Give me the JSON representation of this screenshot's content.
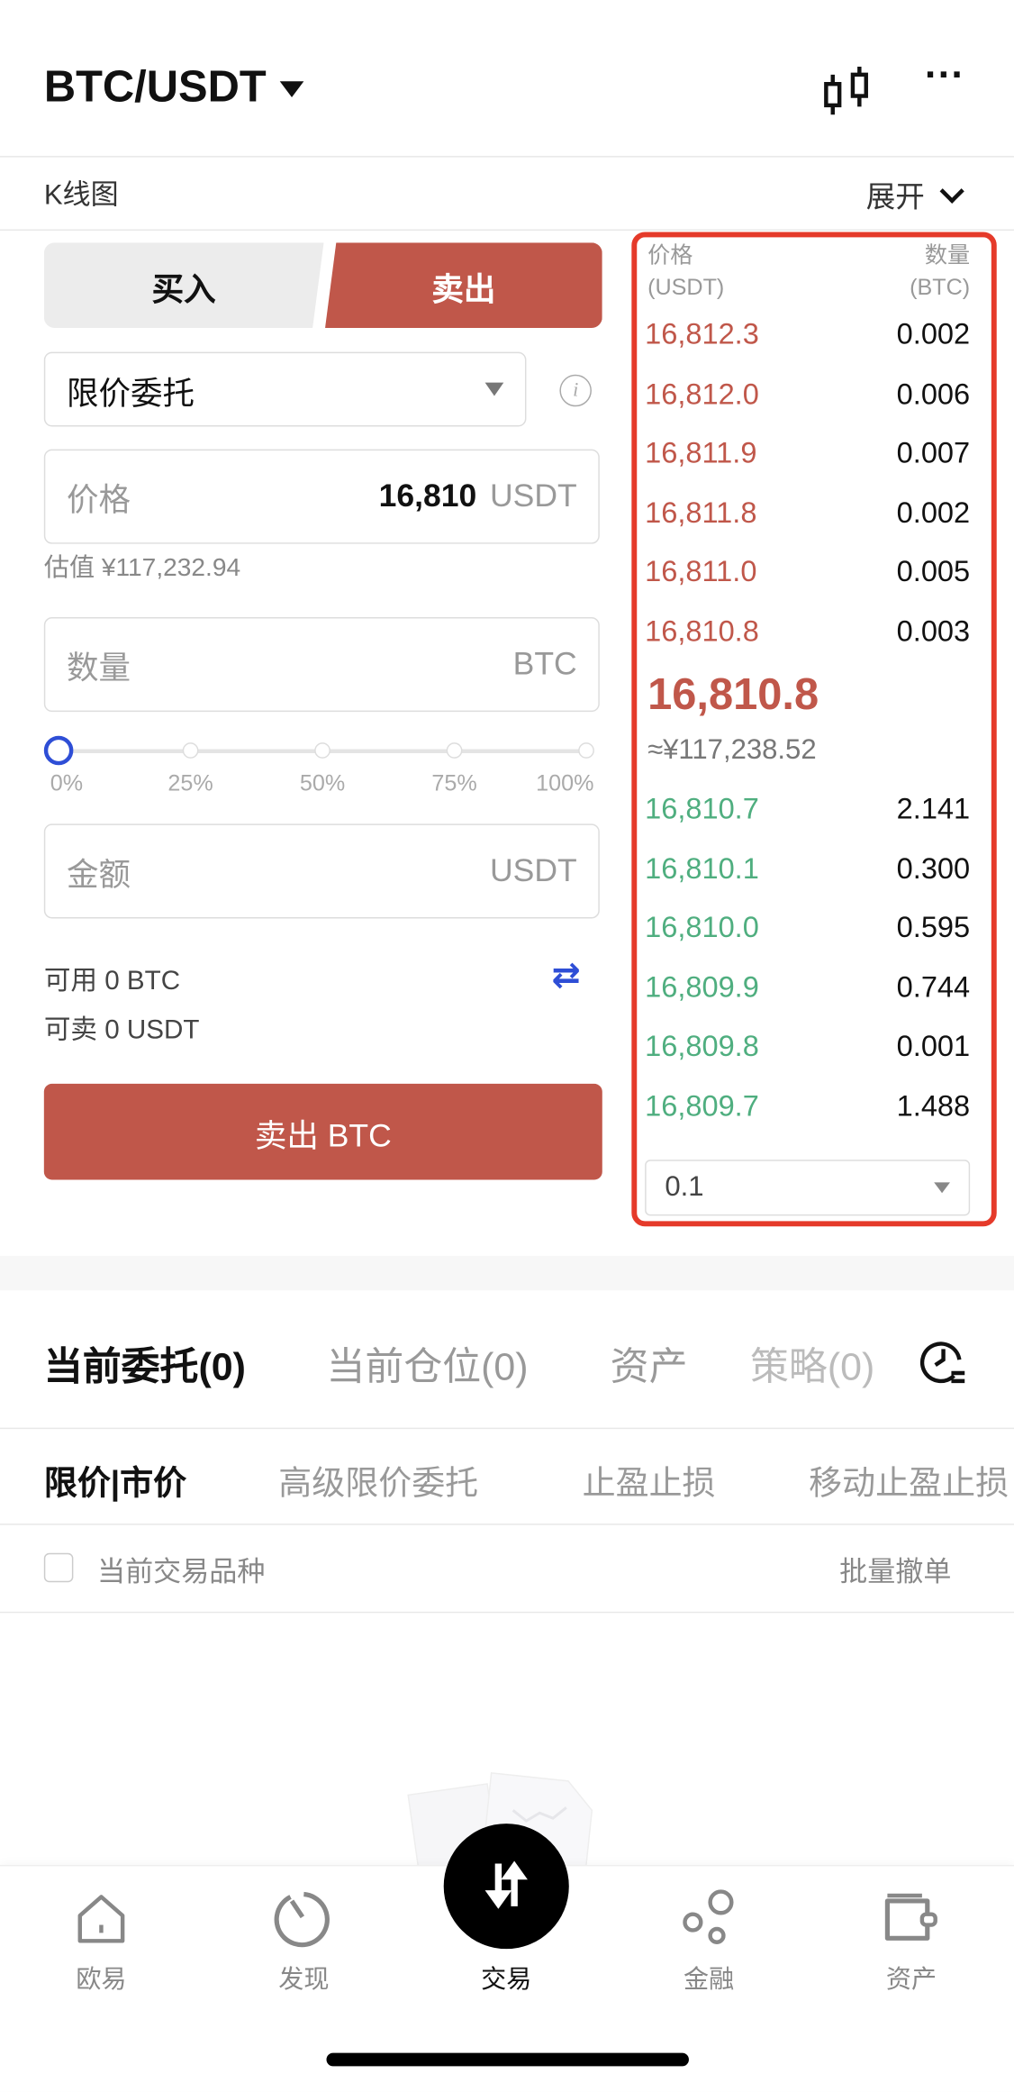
{
  "header": {
    "pair": "BTC/USDT",
    "chart_icon": "candlestick-icon",
    "more_icon": "more-icon"
  },
  "kline": {
    "label": "K线图",
    "expand": "展开"
  },
  "trade": {
    "buy_tab": "买入",
    "sell_tab": "卖出",
    "active_tab": "sell",
    "order_type": "限价委托",
    "price_label": "价格",
    "price_value": "16,810",
    "price_unit": "USDT",
    "estimate": "估值 ¥117,232.94",
    "qty_label": "数量",
    "qty_unit": "BTC",
    "slider_marks": [
      "0%",
      "25%",
      "50%",
      "75%",
      "100%"
    ],
    "slider_value": 0,
    "amount_label": "金额",
    "amount_unit": "USDT",
    "available": "可用 0 BTC",
    "sellable": "可卖 0 USDT",
    "submit": "卖出 BTC",
    "colors": {
      "sell": "#c0574a",
      "buy": "#4fae7f"
    }
  },
  "orderbook": {
    "price_header": "价格",
    "price_unit": "(USDT)",
    "qty_header": "数量",
    "qty_unit": "(BTC)",
    "asks": [
      [
        "16,812.3",
        "0.002"
      ],
      [
        "16,812.0",
        "0.006"
      ],
      [
        "16,811.9",
        "0.007"
      ],
      [
        "16,811.8",
        "0.002"
      ],
      [
        "16,811.0",
        "0.005"
      ],
      [
        "16,810.8",
        "0.003"
      ]
    ],
    "last_price": "16,810.8",
    "last_price_cny": "≈¥117,238.52",
    "bids": [
      [
        "16,810.7",
        "2.141"
      ],
      [
        "16,810.1",
        "0.300"
      ],
      [
        "16,810.0",
        "0.595"
      ],
      [
        "16,809.9",
        "0.744"
      ],
      [
        "16,809.8",
        "0.001"
      ],
      [
        "16,809.7",
        "1.488"
      ]
    ],
    "depth": "0.1"
  },
  "orders": {
    "tabs": [
      "当前委托(0)",
      "当前仓位(0)",
      "资产",
      "策略(0)"
    ],
    "subtabs": [
      "限价|市价",
      "高级限价委托",
      "止盈止损",
      "移动止盈止损"
    ],
    "filter": "当前交易品种",
    "cancel_all": "批量撤单"
  },
  "nav": [
    {
      "label": "欧易",
      "icon": "home-icon"
    },
    {
      "label": "发现",
      "icon": "discover-icon"
    },
    {
      "label": "交易",
      "icon": "trade-swap-icon"
    },
    {
      "label": "金融",
      "icon": "finance-icon"
    },
    {
      "label": "资产",
      "icon": "wallet-icon"
    }
  ]
}
